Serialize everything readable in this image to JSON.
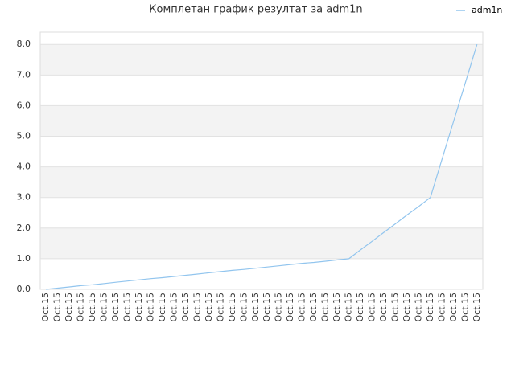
{
  "chart_data": {
    "type": "line",
    "title": "Комплетан график резултат за adm1n",
    "categories": [
      "Oct.15",
      "Oct.15",
      "Oct.15",
      "Oct.15",
      "Oct.15",
      "Oct.15",
      "Oct.15",
      "Oct.15",
      "Oct.15",
      "Oct.15",
      "Oct.15",
      "Oct.15",
      "Oct.15",
      "Oct.15",
      "Oct.15",
      "Oct.15",
      "Oct.15",
      "Oct.15",
      "Oct.15",
      "Oct.15",
      "Oct.15",
      "Oct.15",
      "Oct.15",
      "Oct.15",
      "Oct.15",
      "Oct.15",
      "Oct.15",
      "Oct.15",
      "Oct.15",
      "Oct.15",
      "Oct.15",
      "Oct.15",
      "Oct.15",
      "Oct.15",
      "Oct.15",
      "Oct.15",
      "Oct.15",
      "Oct.15"
    ],
    "series": [
      {
        "name": "adm1n",
        "color": "#92c5ee",
        "values": [
          0,
          0.04,
          0.08,
          0.12,
          0.15,
          0.19,
          0.23,
          0.27,
          0.31,
          0.35,
          0.38,
          0.42,
          0.46,
          0.5,
          0.54,
          0.58,
          0.62,
          0.65,
          0.69,
          0.73,
          0.77,
          0.81,
          0.85,
          0.88,
          0.92,
          0.96,
          1,
          1.29,
          1.57,
          1.86,
          2.14,
          2.43,
          2.71,
          3,
          4.25,
          5.5,
          6.75,
          8
        ]
      }
    ],
    "ylim": [
      0,
      8.4
    ],
    "yticks": [
      {
        "value": 0,
        "label": "0.0"
      },
      {
        "value": 1,
        "label": "1.0"
      },
      {
        "value": 2,
        "label": "2.0"
      },
      {
        "value": 3,
        "label": "3.0"
      },
      {
        "value": 4,
        "label": "4.0"
      },
      {
        "value": 5,
        "label": "5.0"
      },
      {
        "value": 6,
        "label": "6.0"
      },
      {
        "value": 7,
        "label": "7.0"
      },
      {
        "value": 8,
        "label": "8.0"
      }
    ],
    "grid": true,
    "legend": "top-right"
  }
}
